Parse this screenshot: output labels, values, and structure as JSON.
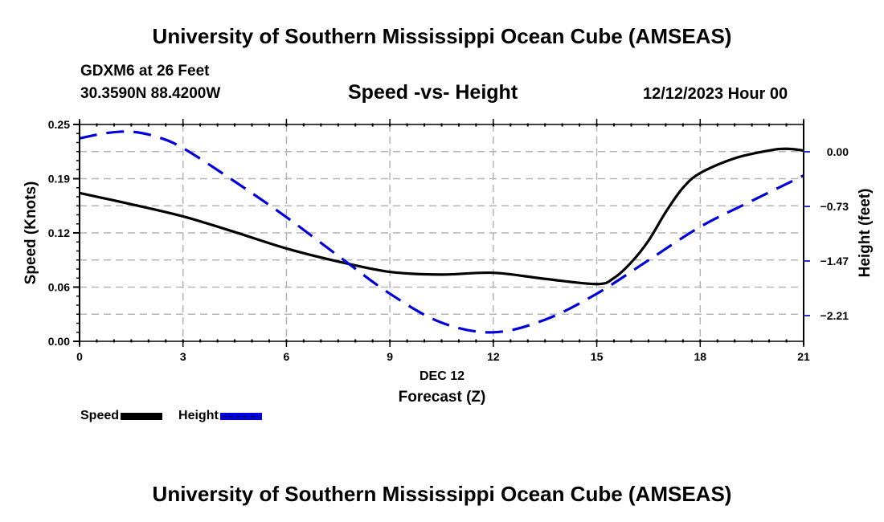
{
  "header": {
    "main_title": "University of Southern Mississippi Ocean Cube (AMSEAS)",
    "station": "GDXM6 at 26 Feet",
    "coordinates": "30.3590N  88.4200W",
    "chart_title": "Speed -vs- Height",
    "date": "12/12/2023 Hour 00"
  },
  "footer": {
    "title": "University of Southern Mississippi Ocean Cube (AMSEAS)"
  },
  "legend": {
    "items": [
      {
        "label": "Speed",
        "color": "#000000",
        "style": "solid"
      },
      {
        "label": "Height",
        "color": "#0000dd",
        "style": "dashed"
      }
    ]
  },
  "chart_data": {
    "type": "line",
    "title": "Speed -vs- Height",
    "xlabel": "Forecast (Z)",
    "xsublabel": "DEC 12",
    "ylabel": "Speed (Knots)",
    "y2label": "Height (feet)",
    "xlim": [
      0,
      21
    ],
    "ylim": [
      0,
      0.25
    ],
    "y2_ticks_ref": {
      "value_at_tick0": 0.0,
      "step": -0.735
    },
    "x_ticks": [
      0,
      3,
      6,
      9,
      12,
      15,
      18,
      21
    ],
    "x_tick_labels": [
      "0",
      "3",
      "6",
      "9",
      "12",
      "15",
      "18",
      "21"
    ],
    "y_ticks": [
      0.0,
      0.0625,
      0.125,
      0.1875,
      0.25
    ],
    "y_tick_labels": [
      "0.00",
      "0.06",
      "0.12",
      "0.19",
      "0.25"
    ],
    "y2_tick_labels": [
      "0.00",
      "−0.73",
      "−1.47",
      "−2.21"
    ],
    "y2_tick_values": [
      0.0,
      -0.735,
      -1.47,
      -2.205
    ],
    "y2lim": [
      -2.64,
      0.36
    ],
    "grid": true,
    "legend_position": "bottom-left",
    "series": [
      {
        "name": "Speed",
        "axis": "left",
        "color": "#000000",
        "dash": "solid",
        "x": [
          0,
          1.5,
          3,
          4.5,
          6,
          7.5,
          9,
          10.5,
          12,
          13.5,
          15,
          15.5,
          16,
          16.5,
          17,
          17.5,
          18,
          19,
          20,
          20.5,
          21
        ],
        "values": [
          0.171,
          0.158,
          0.144,
          0.126,
          0.107,
          0.092,
          0.08,
          0.077,
          0.079,
          0.072,
          0.066,
          0.073,
          0.091,
          0.116,
          0.149,
          0.177,
          0.194,
          0.211,
          0.22,
          0.222,
          0.22
        ]
      },
      {
        "name": "Height",
        "axis": "right",
        "color": "#0000dd",
        "dash": "dashed",
        "x": [
          0,
          0.75,
          1.5,
          2.25,
          3,
          4.5,
          6,
          7.5,
          9,
          10.5,
          12,
          13.5,
          15,
          16.5,
          18,
          19.5,
          21
        ],
        "values": [
          0.18,
          0.25,
          0.27,
          0.2,
          0.05,
          -0.4,
          -0.88,
          -1.4,
          -1.91,
          -2.3,
          -2.43,
          -2.26,
          -1.91,
          -1.46,
          -1.01,
          -0.66,
          -0.32
        ]
      }
    ]
  }
}
